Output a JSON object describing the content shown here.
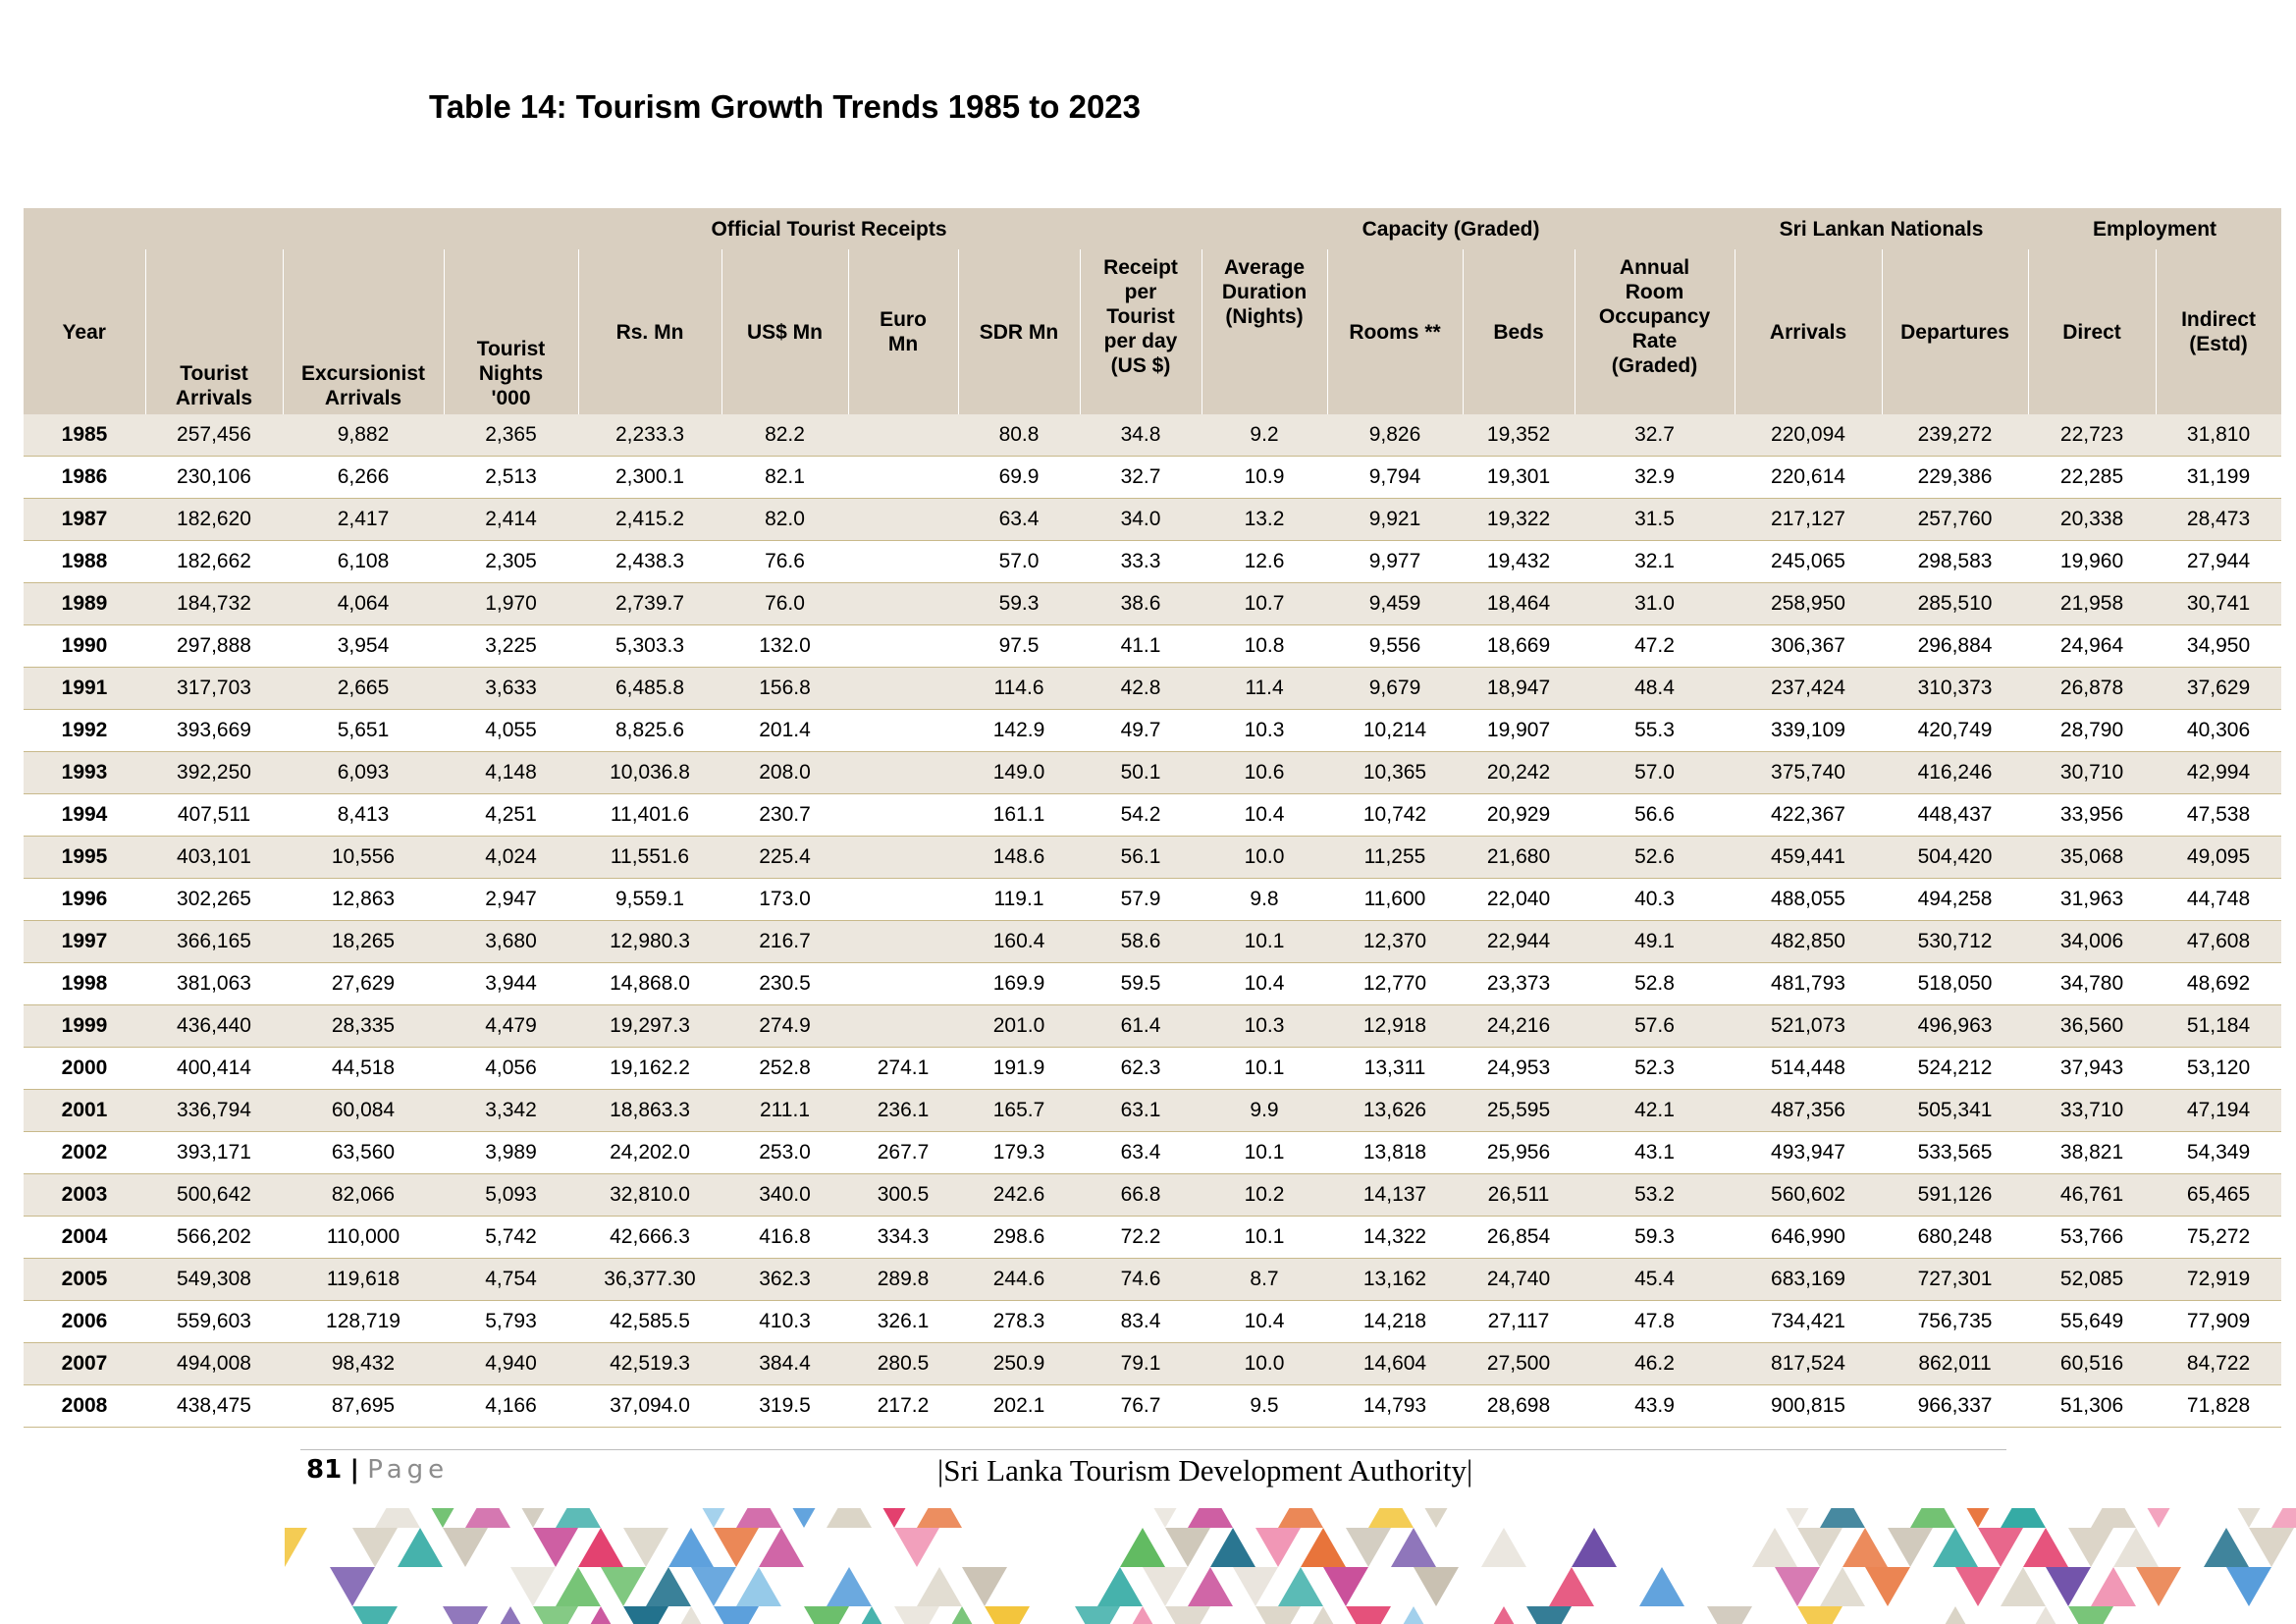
{
  "title": "Table 14: Tourism Growth Trends 1985 to 2023",
  "group_headers": {
    "official_receipts": "Official Tourist Receipts",
    "capacity": "Capacity (Graded)",
    "nationals": "Sri Lankan Nationals",
    "employment": "Employment"
  },
  "columns": [
    [
      "Year"
    ],
    [
      "Tourist",
      "Arrivals"
    ],
    [
      "Excursionist",
      "Arrivals"
    ],
    [
      "Tourist",
      "Nights",
      "'000"
    ],
    [
      "Rs. Mn"
    ],
    [
      "US$ Mn"
    ],
    [
      "Euro",
      "Mn"
    ],
    [
      "SDR Mn"
    ],
    [
      "Receipt",
      "per",
      "Tourist",
      "per day",
      "(US $)"
    ],
    [
      "Average",
      "Duration",
      "(Nights)"
    ],
    [
      "Rooms **"
    ],
    [
      "Beds"
    ],
    [
      "Annual",
      "Room",
      "Occupancy",
      "Rate",
      "(Graded)"
    ],
    [
      "Arrivals"
    ],
    [
      "Departures"
    ],
    [
      "Direct"
    ],
    [
      "Indirect",
      "(Estd)"
    ]
  ],
  "rows": [
    [
      "1985",
      "257,456",
      "9,882",
      "2,365",
      "2,233.3",
      "82.2",
      "",
      "80.8",
      "34.8",
      "9.2",
      "9,826",
      "19,352",
      "32.7",
      "220,094",
      "239,272",
      "22,723",
      "31,810"
    ],
    [
      "1986",
      "230,106",
      "6,266",
      "2,513",
      "2,300.1",
      "82.1",
      "",
      "69.9",
      "32.7",
      "10.9",
      "9,794",
      "19,301",
      "32.9",
      "220,614",
      "229,386",
      "22,285",
      "31,199"
    ],
    [
      "1987",
      "182,620",
      "2,417",
      "2,414",
      "2,415.2",
      "82.0",
      "",
      "63.4",
      "34.0",
      "13.2",
      "9,921",
      "19,322",
      "31.5",
      "217,127",
      "257,760",
      "20,338",
      "28,473"
    ],
    [
      "1988",
      "182,662",
      "6,108",
      "2,305",
      "2,438.3",
      "76.6",
      "",
      "57.0",
      "33.3",
      "12.6",
      "9,977",
      "19,432",
      "32.1",
      "245,065",
      "298,583",
      "19,960",
      "27,944"
    ],
    [
      "1989",
      "184,732",
      "4,064",
      "1,970",
      "2,739.7",
      "76.0",
      "",
      "59.3",
      "38.6",
      "10.7",
      "9,459",
      "18,464",
      "31.0",
      "258,950",
      "285,510",
      "21,958",
      "30,741"
    ],
    [
      "1990",
      "297,888",
      "3,954",
      "3,225",
      "5,303.3",
      "132.0",
      "",
      "97.5",
      "41.1",
      "10.8",
      "9,556",
      "18,669",
      "47.2",
      "306,367",
      "296,884",
      "24,964",
      "34,950"
    ],
    [
      "1991",
      "317,703",
      "2,665",
      "3,633",
      "6,485.8",
      "156.8",
      "",
      "114.6",
      "42.8",
      "11.4",
      "9,679",
      "18,947",
      "48.4",
      "237,424",
      "310,373",
      "26,878",
      "37,629"
    ],
    [
      "1992",
      "393,669",
      "5,651",
      "4,055",
      "8,825.6",
      "201.4",
      "",
      "142.9",
      "49.7",
      "10.3",
      "10,214",
      "19,907",
      "55.3",
      "339,109",
      "420,749",
      "28,790",
      "40,306"
    ],
    [
      "1993",
      "392,250",
      "6,093",
      "4,148",
      "10,036.8",
      "208.0",
      "",
      "149.0",
      "50.1",
      "10.6",
      "10,365",
      "20,242",
      "57.0",
      "375,740",
      "416,246",
      "30,710",
      "42,994"
    ],
    [
      "1994",
      "407,511",
      "8,413",
      "4,251",
      "11,401.6",
      "230.7",
      "",
      "161.1",
      "54.2",
      "10.4",
      "10,742",
      "20,929",
      "56.6",
      "422,367",
      "448,437",
      "33,956",
      "47,538"
    ],
    [
      "1995",
      "403,101",
      "10,556",
      "4,024",
      "11,551.6",
      "225.4",
      "",
      "148.6",
      "56.1",
      "10.0",
      "11,255",
      "21,680",
      "52.6",
      "459,441",
      "504,420",
      "35,068",
      "49,095"
    ],
    [
      "1996",
      "302,265",
      "12,863",
      "2,947",
      "9,559.1",
      "173.0",
      "",
      "119.1",
      "57.9",
      "9.8",
      "11,600",
      "22,040",
      "40.3",
      "488,055",
      "494,258",
      "31,963",
      "44,748"
    ],
    [
      "1997",
      "366,165",
      "18,265",
      "3,680",
      "12,980.3",
      "216.7",
      "",
      "160.4",
      "58.6",
      "10.1",
      "12,370",
      "22,944",
      "49.1",
      "482,850",
      "530,712",
      "34,006",
      "47,608"
    ],
    [
      "1998",
      "381,063",
      "27,629",
      "3,944",
      "14,868.0",
      "230.5",
      "",
      "169.9",
      "59.5",
      "10.4",
      "12,770",
      "23,373",
      "52.8",
      "481,793",
      "518,050",
      "34,780",
      "48,692"
    ],
    [
      "1999",
      "436,440",
      "28,335",
      "4,479",
      "19,297.3",
      "274.9",
      "",
      "201.0",
      "61.4",
      "10.3",
      "12,918",
      "24,216",
      "57.6",
      "521,073",
      "496,963",
      "36,560",
      "51,184"
    ],
    [
      "2000",
      "400,414",
      "44,518",
      "4,056",
      "19,162.2",
      "252.8",
      "274.1",
      "191.9",
      "62.3",
      "10.1",
      "13,311",
      "24,953",
      "52.3",
      "514,448",
      "524,212",
      "37,943",
      "53,120"
    ],
    [
      "2001",
      "336,794",
      "60,084",
      "3,342",
      "18,863.3",
      "211.1",
      "236.1",
      "165.7",
      "63.1",
      "9.9",
      "13,626",
      "25,595",
      "42.1",
      "487,356",
      "505,341",
      "33,710",
      "47,194"
    ],
    [
      "2002",
      "393,171",
      "63,560",
      "3,989",
      "24,202.0",
      "253.0",
      "267.7",
      "179.3",
      "63.4",
      "10.1",
      "13,818",
      "25,956",
      "43.1",
      "493,947",
      "533,565",
      "38,821",
      "54,349"
    ],
    [
      "2003",
      "500,642",
      "82,066",
      "5,093",
      "32,810.0",
      "340.0",
      "300.5",
      "242.6",
      "66.8",
      "10.2",
      "14,137",
      "26,511",
      "53.2",
      "560,602",
      "591,126",
      "46,761",
      "65,465"
    ],
    [
      "2004",
      "566,202",
      "110,000",
      "5,742",
      "42,666.3",
      "416.8",
      "334.3",
      "298.6",
      "72.2",
      "10.1",
      "14,322",
      "26,854",
      "59.3",
      "646,990",
      "680,248",
      "53,766",
      "75,272"
    ],
    [
      "2005",
      "549,308",
      "119,618",
      "4,754",
      "36,377.30",
      "362.3",
      "289.8",
      "244.6",
      "74.6",
      "8.7",
      "13,162",
      "24,740",
      "45.4",
      "683,169",
      "727,301",
      "52,085",
      "72,919"
    ],
    [
      "2006",
      "559,603",
      "128,719",
      "5,793",
      "42,585.5",
      "410.3",
      "326.1",
      "278.3",
      "83.4",
      "10.4",
      "14,218",
      "27,117",
      "47.8",
      "734,421",
      "756,735",
      "55,649",
      "77,909"
    ],
    [
      "2007",
      "494,008",
      "98,432",
      "4,940",
      "42,519.3",
      "384.4",
      "280.5",
      "250.9",
      "79.1",
      "10.0",
      "14,604",
      "27,500",
      "46.2",
      "817,524",
      "862,011",
      "60,516",
      "84,722"
    ],
    [
      "2008",
      "438,475",
      "87,695",
      "4,166",
      "37,094.0",
      "319.5",
      "217.2",
      "202.1",
      "76.7",
      "9.5",
      "14,793",
      "28,698",
      "43.9",
      "900,815",
      "966,337",
      "51,306",
      "71,828"
    ]
  ],
  "footer": {
    "page_number": "81",
    "separator": "|",
    "page_word": "Page",
    "authority": "|Sri Lanka Tourism Development Authority|"
  },
  "banner_icon": "colorful-geometric-banner",
  "colors": {
    "header_bg": "#d9cfc0",
    "row_shade": "#ece7de",
    "row_rule": "#c8b98a"
  }
}
